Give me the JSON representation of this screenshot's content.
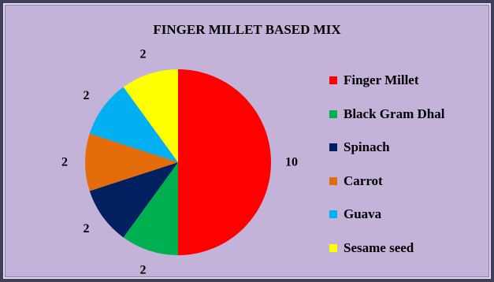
{
  "chart_data": {
    "type": "pie",
    "title": "FINGER MILLET BASED MIX",
    "categories": [
      "Finger Millet",
      "Black Gram Dhal",
      "Spinach",
      "Carrot",
      "Guava",
      "Sesame seed"
    ],
    "values": [
      10,
      2,
      2,
      2,
      2,
      2
    ],
    "colors": [
      "#ff0000",
      "#00b050",
      "#002060",
      "#e46c0a",
      "#00b0f0",
      "#ffff00"
    ],
    "data_labels": [
      "10",
      "2",
      "2",
      "2",
      "2",
      "2"
    ],
    "legend_position": "right",
    "start_angle": "12 o'clock",
    "direction": "clockwise"
  }
}
